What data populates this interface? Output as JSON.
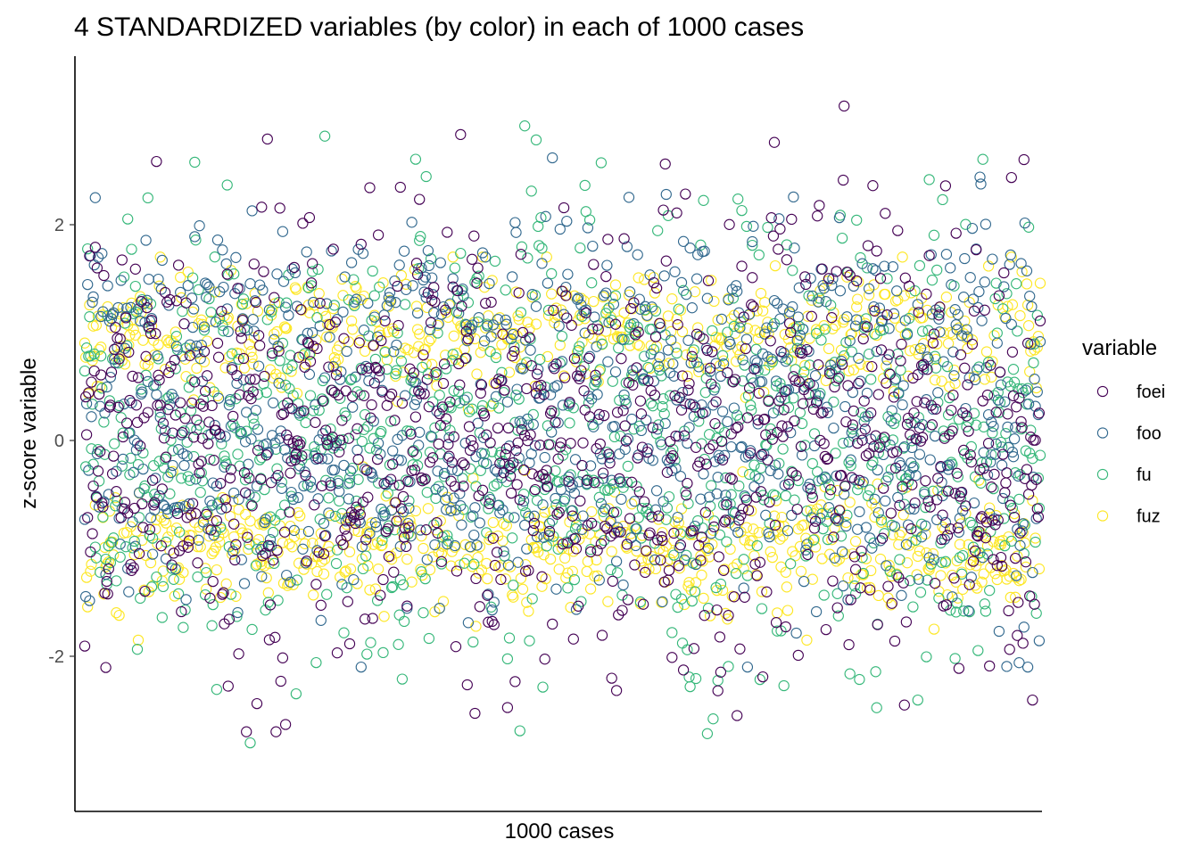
{
  "chart_data": {
    "type": "scatter",
    "title": "4 STANDARDIZED variables (by color) in each of 1000 cases",
    "xlabel": "1000 cases",
    "ylabel": "z-score variable",
    "xlim": [
      1,
      1000
    ],
    "ylim": [
      -3.4,
      3.5
    ],
    "x_ticks_shown": false,
    "y_ticks": [
      {
        "value": -2,
        "label": "-2"
      },
      {
        "value": 0,
        "label": "0"
      },
      {
        "value": 2,
        "label": "2"
      }
    ],
    "grid": false,
    "legend": {
      "title": "variable",
      "position": "right",
      "entries": [
        "foei",
        "foo",
        "fu",
        "fuz"
      ]
    },
    "series": [
      {
        "name": "foei",
        "color": "#440154",
        "n": 1000,
        "distribution": "roughly normal, mean 0, sd 1",
        "y_range_observed": [
          -2.7,
          3.1
        ]
      },
      {
        "name": "foo",
        "color": "#31688E",
        "n": 1000,
        "distribution": "bimodal, peaks near -0.3 and 1.2",
        "y_range_observed": [
          -2.1,
          2.85
        ]
      },
      {
        "name": "fu",
        "color": "#35B779",
        "n": 1000,
        "distribution": "roughly normal, mean 0, sd 1",
        "y_range_observed": [
          -3.1,
          3.25
        ]
      },
      {
        "name": "fuz",
        "color": "#FDE725",
        "n": 1000,
        "distribution": "bimodal, peaks near -1.0 and 1.0",
        "y_range_observed": [
          -1.85,
          1.7
        ]
      }
    ]
  }
}
